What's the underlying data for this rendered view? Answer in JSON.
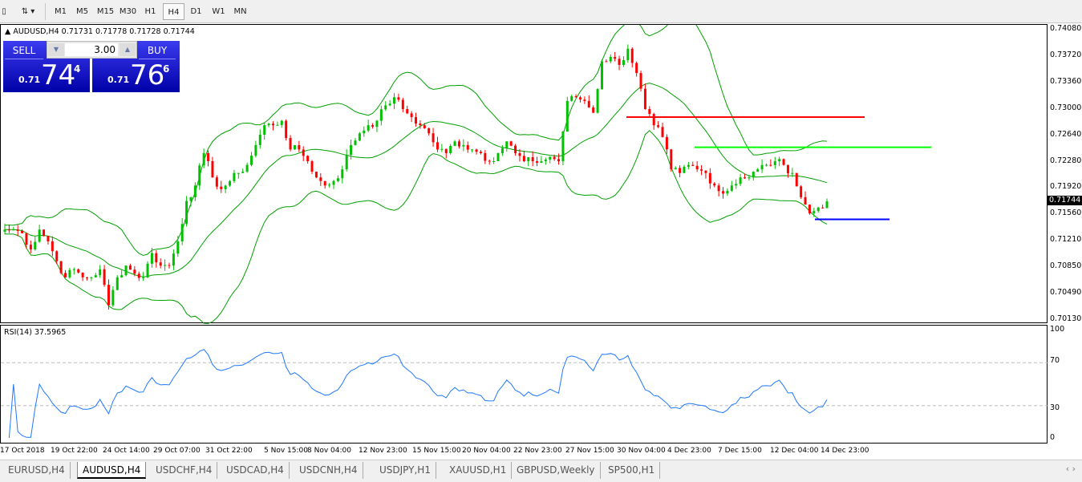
{
  "toolbar": {
    "timeframes": [
      "M1",
      "M5",
      "M15",
      "M30",
      "H1",
      "H4",
      "D1",
      "W1",
      "MN"
    ],
    "active": "H4"
  },
  "info": {
    "symbol": "AUDUSD,H4",
    "ohlc": "0.71731 0.71778 0.71728 0.71744"
  },
  "trade": {
    "sell_label": "SELL",
    "buy_label": "BUY",
    "lot": "3.00",
    "sell_prefix": "0.71",
    "sell_big": "74",
    "sell_sup": "4",
    "buy_prefix": "0.71",
    "buy_big": "76",
    "buy_sup": "6"
  },
  "price_axis": [
    "0.74080",
    "0.73720",
    "0.73360",
    "0.73000",
    "0.72640",
    "0.72280",
    "0.71920",
    "0.71560",
    "0.71210",
    "0.70850",
    "0.70490",
    "0.70130"
  ],
  "current_price": "0.71744",
  "rsi": {
    "label": "RSI(14) 37.5965",
    "levels": [
      "100",
      "70",
      "30",
      "0"
    ]
  },
  "time_axis": [
    "17 Oct 2018",
    "19 Oct 22:00",
    "24 Oct 14:00",
    "29 Oct 07:00",
    "31 Oct 22:00",
    "5 Nov 15:00",
    "8 Nov 04:00",
    "12 Nov 23:00",
    "15 Nov 15:00",
    "20 Nov 04:00",
    "22 Nov 23:00",
    "27 Nov 15:00",
    "30 Nov 04:00",
    "4 Dec 23:00",
    "7 Dec 15:00",
    "12 Dec 04:00",
    "14 Dec 23:00"
  ],
  "tabs": [
    "EURUSD,H4",
    "AUDUSD,H4",
    "USDCHF,H4",
    "USDCAD,H4",
    "USDCNH,H4",
    "USDJPY,H1",
    "XAUUSD,H1",
    "GBPUSD,Weekly",
    "SP500,H1"
  ],
  "active_tab": "AUDUSD,H4",
  "chart_data": {
    "type": "candlestick",
    "symbol": "AUDUSD",
    "timeframe": "H4",
    "ylim": [
      0.7013,
      0.7408
    ],
    "closes": [
      0.7136,
      0.7136,
      0.7131,
      0.7109,
      0.7136,
      0.712,
      0.7093,
      0.7071,
      0.7082,
      0.7071,
      0.7071,
      0.7082,
      0.7033,
      0.7071,
      0.7087,
      0.7076,
      0.7071,
      0.7104,
      0.7087,
      0.7087,
      0.712,
      0.7175,
      0.7196,
      0.724,
      0.7207,
      0.7191,
      0.7202,
      0.7213,
      0.7224,
      0.7251,
      0.7278,
      0.7278,
      0.7284,
      0.7245,
      0.7245,
      0.7229,
      0.7207,
      0.7196,
      0.7202,
      0.7218,
      0.7251,
      0.7267,
      0.7278,
      0.7284,
      0.7305,
      0.7316,
      0.73,
      0.7289,
      0.7278,
      0.7267,
      0.7245,
      0.724,
      0.7256,
      0.7251,
      0.7245,
      0.724,
      0.7229,
      0.724,
      0.7256,
      0.724,
      0.7229,
      0.7229,
      0.7229,
      0.7235,
      0.7229,
      0.7311,
      0.7316,
      0.7311,
      0.7295,
      0.7365,
      0.7371,
      0.736,
      0.7382,
      0.7349,
      0.73,
      0.7278,
      0.7262,
      0.7218,
      0.7213,
      0.7224,
      0.7218,
      0.7213,
      0.7196,
      0.7185,
      0.7196,
      0.7207,
      0.7207,
      0.7218,
      0.7224,
      0.7229,
      0.7224,
      0.7213,
      0.718,
      0.7158,
      0.7166,
      0.71744
    ],
    "indicators": [
      "Bollinger Bands",
      "RSI(14)"
    ],
    "rsi_levels": [
      70,
      30
    ],
    "hlines": [
      {
        "price": 0.7289,
        "color": "#ff0000"
      },
      {
        "price": 0.7248,
        "color": "#00ff00"
      },
      {
        "price": 0.715,
        "color": "#0000ff"
      }
    ],
    "colors": {
      "up": "#00c000",
      "down": "#ff0000",
      "bands": "#00a000",
      "rsi": "#1e78ff"
    }
  }
}
